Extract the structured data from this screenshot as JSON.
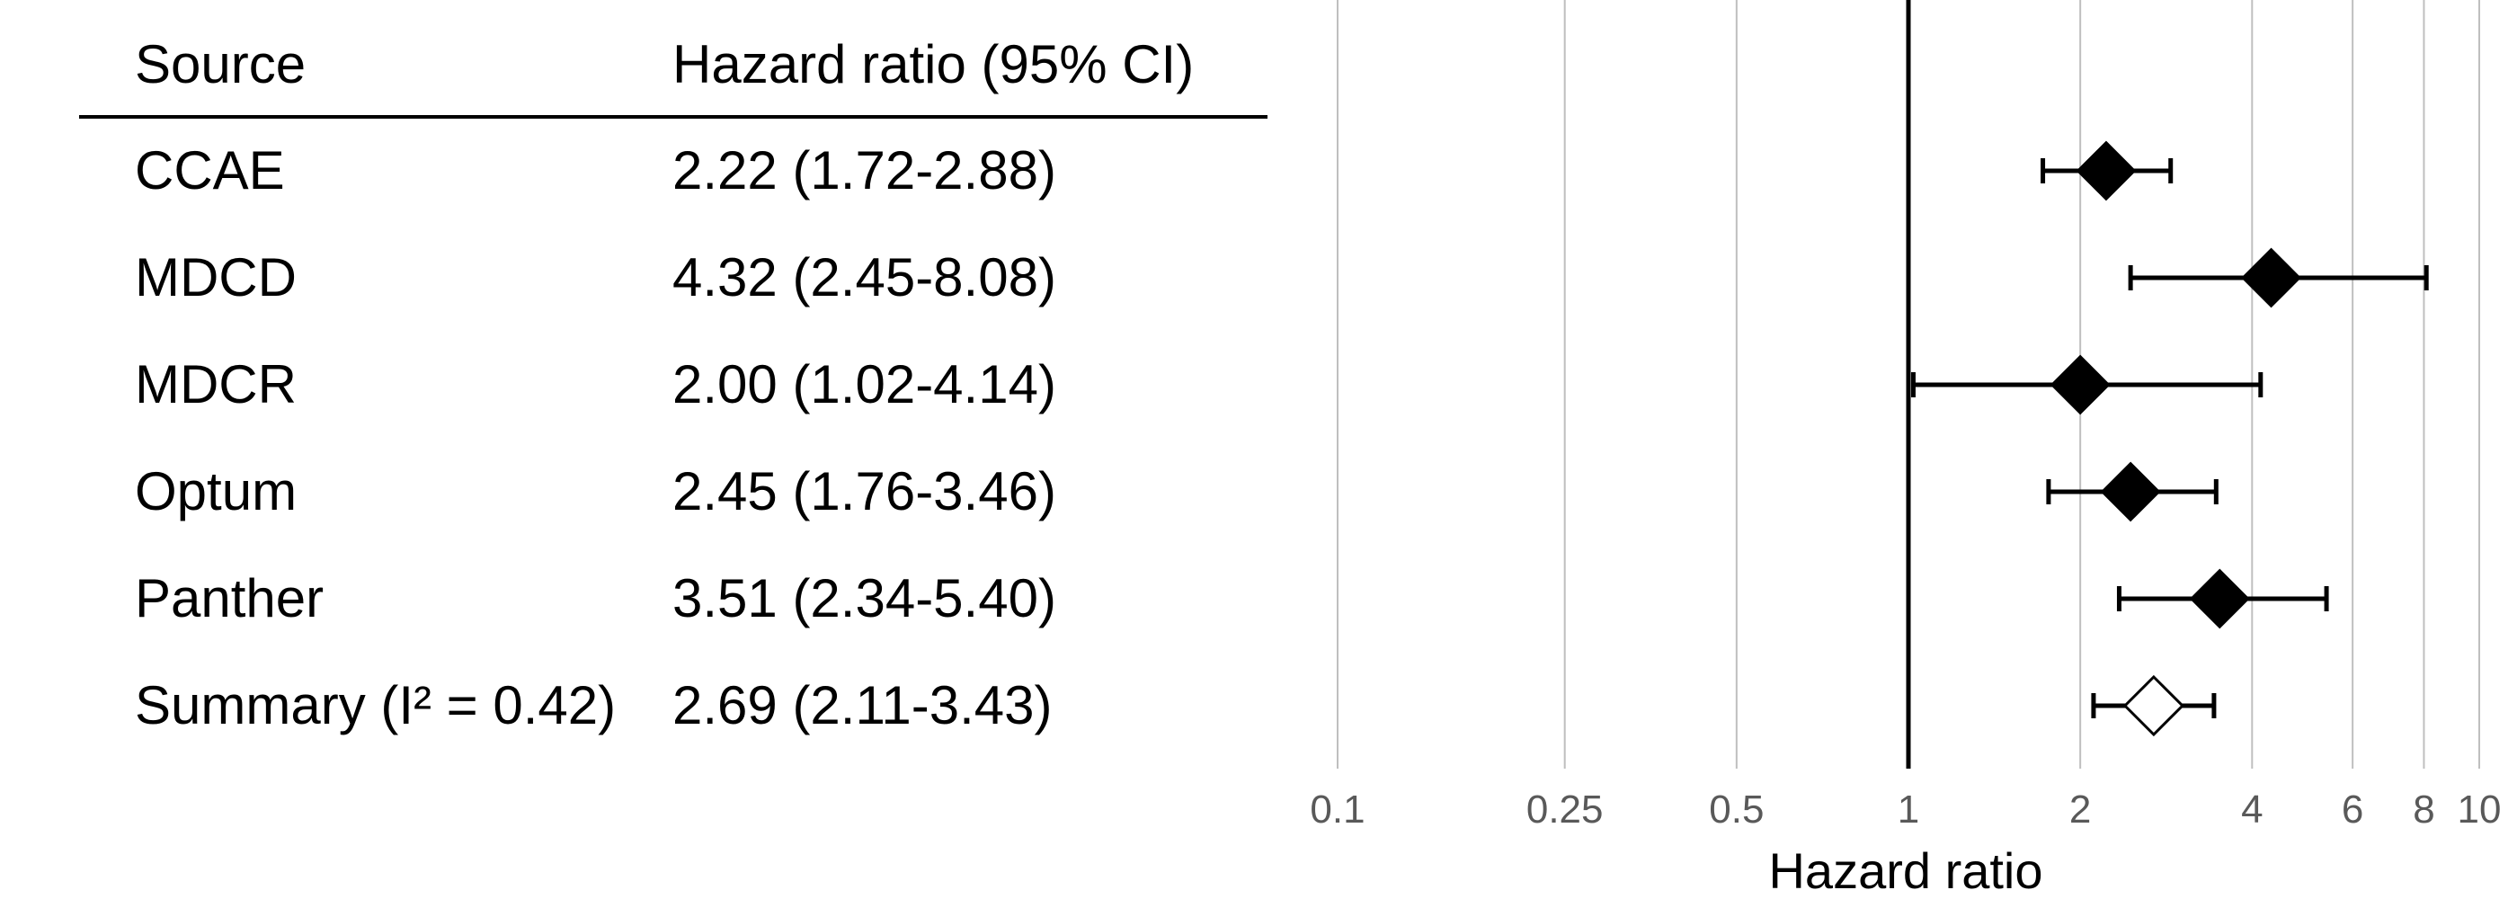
{
  "chart_data": {
    "type": "forest",
    "table": {
      "headers": [
        "Source",
        "Hazard ratio (95% CI)"
      ],
      "rows": [
        {
          "source": "CCAE",
          "label": "2.22 (1.72-2.88)",
          "hr": 2.22,
          "lo": 1.72,
          "hi": 2.88,
          "summary": false
        },
        {
          "source": "MDCD",
          "label": "4.32 (2.45-8.08)",
          "hr": 4.32,
          "lo": 2.45,
          "hi": 8.08,
          "summary": false
        },
        {
          "source": "MDCR",
          "label": "2.00 (1.02-4.14)",
          "hr": 2.0,
          "lo": 1.02,
          "hi": 4.14,
          "summary": false
        },
        {
          "source": "Optum",
          "label": "2.45 (1.76-3.46)",
          "hr": 2.45,
          "lo": 1.76,
          "hi": 3.46,
          "summary": false
        },
        {
          "source": "Panther",
          "label": "3.51 (2.34-5.40)",
          "hr": 3.51,
          "lo": 2.34,
          "hi": 5.4,
          "summary": false
        },
        {
          "source": "Summary (I² = 0.42)",
          "label": "2.69 (2.11-3.43)",
          "hr": 2.69,
          "lo": 2.11,
          "hi": 3.43,
          "summary": true
        }
      ]
    },
    "xlabel": "Hazard ratio",
    "xscale": "log",
    "xlim": [
      0.1,
      10
    ],
    "reference_line": 1,
    "ticks": [
      {
        "value": 0.1,
        "label": "0.1"
      },
      {
        "value": 0.25,
        "label": "0.25"
      },
      {
        "value": 0.5,
        "label": "0.5"
      },
      {
        "value": 1,
        "label": "1"
      },
      {
        "value": 2,
        "label": "2"
      },
      {
        "value": 4,
        "label": "4"
      },
      {
        "value": 6,
        "label": "6"
      },
      {
        "value": 8,
        "label": "8"
      },
      {
        "value": 10,
        "label": "10"
      }
    ],
    "grid": true
  },
  "colors": {
    "marker": "#000000",
    "summary_fill": "#ffffff",
    "grid": "#bfbfbf",
    "tick_text": "#595959"
  }
}
